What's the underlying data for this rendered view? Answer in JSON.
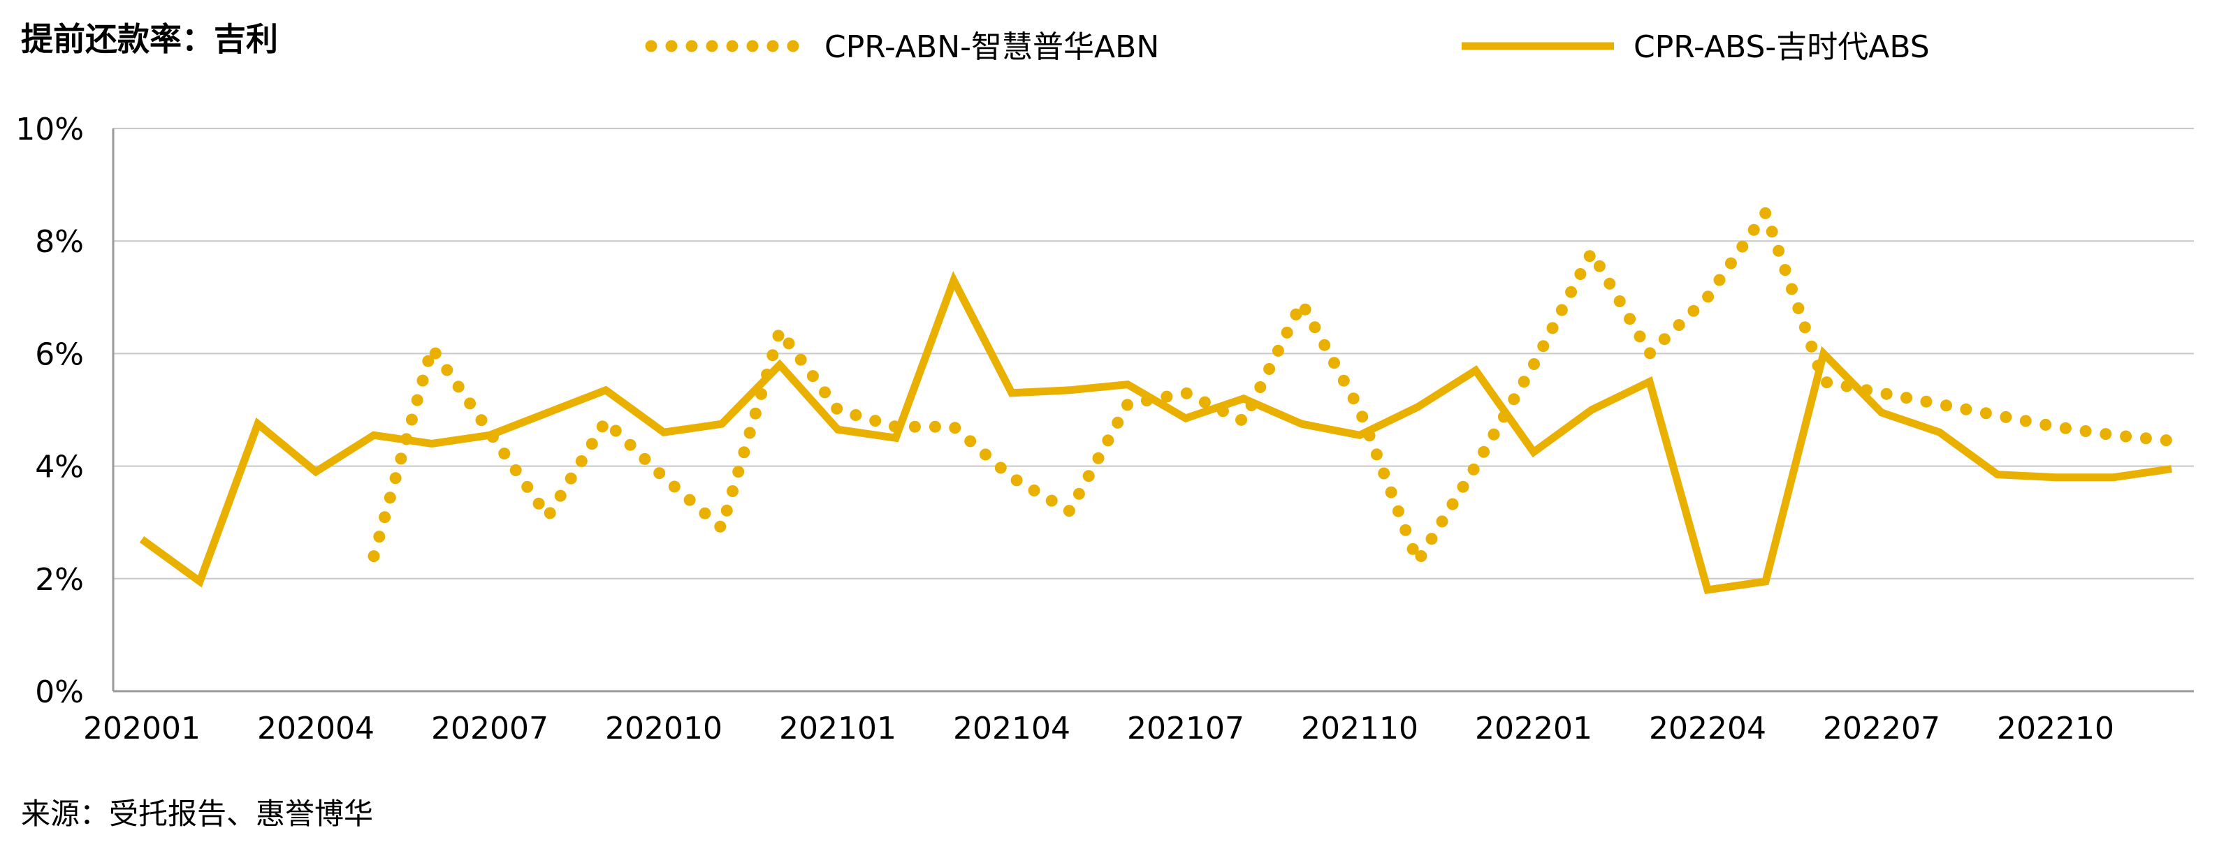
{
  "chart_data": {
    "type": "line",
    "title": "提前还款率：吉利",
    "source": "来源：受托报告、惠誉博华",
    "x_ticks": [
      "202001",
      "202004",
      "202007",
      "202010",
      "202101",
      "202104",
      "202107",
      "202110",
      "202201",
      "202204",
      "202207",
      "202210"
    ],
    "y_ticks": [
      "0%",
      "2%",
      "4%",
      "6%",
      "8%",
      "10%"
    ],
    "ylim": [
      0,
      10
    ],
    "y_unit": "%",
    "x_count": 36,
    "legend_position": "top",
    "grid": true,
    "series": [
      {
        "name": "CPR-ABN-智慧普华ABN",
        "style": "dotted",
        "color": "#EAB000",
        "values": [
          null,
          null,
          null,
          null,
          2.4,
          6.1,
          4.6,
          3.1,
          4.8,
          3.8,
          2.9,
          6.4,
          5.0,
          4.7,
          4.7,
          3.8,
          3.2,
          5.1,
          5.3,
          4.8,
          6.9,
          5.0,
          2.3,
          4.0,
          5.8,
          7.8,
          6.0,
          7.0,
          8.5,
          5.5,
          5.3,
          5.1,
          4.9,
          4.7,
          4.55,
          4.45
        ]
      },
      {
        "name": "CPR-ABS-吉时代ABS",
        "style": "solid",
        "color": "#EAB000",
        "values": [
          2.7,
          1.95,
          4.75,
          3.9,
          4.55,
          4.4,
          4.55,
          4.95,
          5.35,
          4.6,
          4.75,
          5.8,
          4.65,
          4.5,
          7.3,
          5.3,
          5.35,
          5.45,
          4.85,
          5.2,
          4.75,
          4.55,
          5.05,
          5.7,
          4.25,
          5.0,
          5.5,
          1.8,
          1.95,
          6.0,
          4.95,
          4.6,
          3.85,
          3.8,
          3.8,
          3.95
        ]
      }
    ]
  }
}
